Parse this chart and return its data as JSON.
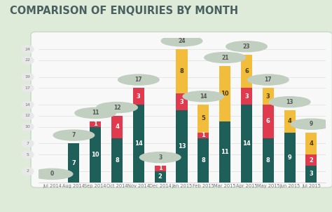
{
  "title": "COMPARISON OF ENQUIRIES BY MONTH",
  "categories": [
    "Jul 2014",
    "Aug 2014",
    "Sep 2014",
    "Oct 2014",
    "Nov 2014",
    "Dec 2014",
    "Jan 2015",
    "Feb 2015",
    "Mar 2015",
    "Apr 2015",
    "May 2015",
    "Jun 2015",
    "Jul 2015"
  ],
  "dark_teal": [
    0,
    7,
    10,
    8,
    14,
    2,
    13,
    8,
    11,
    14,
    8,
    9,
    3
  ],
  "red": [
    0,
    0,
    1,
    4,
    3,
    1,
    3,
    1,
    0,
    3,
    6,
    0,
    2
  ],
  "yellow": [
    0,
    0,
    0,
    0,
    0,
    0,
    8,
    5,
    10,
    6,
    3,
    4,
    4
  ],
  "totals": [
    0,
    7,
    11,
    12,
    17,
    3,
    24,
    14,
    21,
    23,
    17,
    13,
    9
  ],
  "color_teal": "#1e5f5a",
  "color_red": "#e03a4e",
  "color_yellow": "#f2bc3c",
  "color_bubble_ytick": "#e8e8e8",
  "color_bubble_top": "#c0cfc0",
  "color_bg": "#deebd8",
  "color_chart_bg": "#f8f8f8",
  "ylim_max": 26,
  "ytick_values": [
    2,
    5,
    7,
    10,
    12,
    14,
    17,
    19,
    22,
    24
  ],
  "bar_width": 0.52
}
